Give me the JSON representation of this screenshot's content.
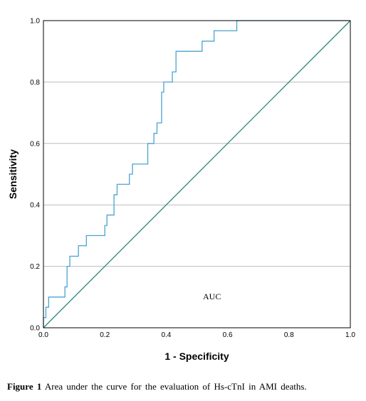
{
  "chart_data": {
    "type": "line",
    "xlabel": "1 - Specificity",
    "ylabel": "Sensitivity",
    "xlim": [
      0,
      1
    ],
    "ylim": [
      0,
      1
    ],
    "x_ticks": [
      "0.0",
      "0.2",
      "0.4",
      "0.6",
      "0.8",
      "1.0"
    ],
    "y_ticks": [
      "0.0",
      "0.2",
      "0.4",
      "0.6",
      "0.8",
      "1.0"
    ],
    "grid": "horizontal",
    "annotation": "AUC",
    "colors": {
      "roc": "#4aa3d0",
      "reference": "#2a8a7e",
      "grid": "#bdbdbd"
    },
    "series": [
      {
        "points": [
          [
            0.0,
            0.0
          ],
          [
            0.0,
            0.033
          ],
          [
            0.008,
            0.033
          ],
          [
            0.008,
            0.067
          ],
          [
            0.017,
            0.067
          ],
          [
            0.017,
            0.1
          ],
          [
            0.07,
            0.1
          ],
          [
            0.07,
            0.133
          ],
          [
            0.077,
            0.133
          ],
          [
            0.077,
            0.2
          ],
          [
            0.086,
            0.2
          ],
          [
            0.086,
            0.233
          ],
          [
            0.114,
            0.233
          ],
          [
            0.114,
            0.267
          ],
          [
            0.14,
            0.267
          ],
          [
            0.14,
            0.3
          ],
          [
            0.2,
            0.3
          ],
          [
            0.2,
            0.333
          ],
          [
            0.207,
            0.333
          ],
          [
            0.207,
            0.367
          ],
          [
            0.23,
            0.367
          ],
          [
            0.23,
            0.433
          ],
          [
            0.24,
            0.433
          ],
          [
            0.24,
            0.467
          ],
          [
            0.28,
            0.467
          ],
          [
            0.28,
            0.5
          ],
          [
            0.29,
            0.5
          ],
          [
            0.29,
            0.533
          ],
          [
            0.34,
            0.533
          ],
          [
            0.34,
            0.6
          ],
          [
            0.36,
            0.6
          ],
          [
            0.36,
            0.633
          ],
          [
            0.37,
            0.633
          ],
          [
            0.37,
            0.667
          ],
          [
            0.385,
            0.667
          ],
          [
            0.385,
            0.767
          ],
          [
            0.392,
            0.767
          ],
          [
            0.392,
            0.8
          ],
          [
            0.42,
            0.8
          ],
          [
            0.42,
            0.833
          ],
          [
            0.432,
            0.833
          ],
          [
            0.432,
            0.9
          ],
          [
            0.517,
            0.9
          ],
          [
            0.517,
            0.933
          ],
          [
            0.556,
            0.933
          ],
          [
            0.556,
            0.967
          ],
          [
            0.63,
            0.967
          ],
          [
            0.63,
            1.0
          ],
          [
            1.0,
            1.0
          ]
        ]
      },
      {
        "points": [
          [
            0,
            0
          ],
          [
            1,
            1
          ]
        ]
      }
    ]
  },
  "caption": {
    "label": "Figure 1",
    "text": "Area under the curve for the evaluation  of Hs-cTnI in AMI deaths."
  }
}
